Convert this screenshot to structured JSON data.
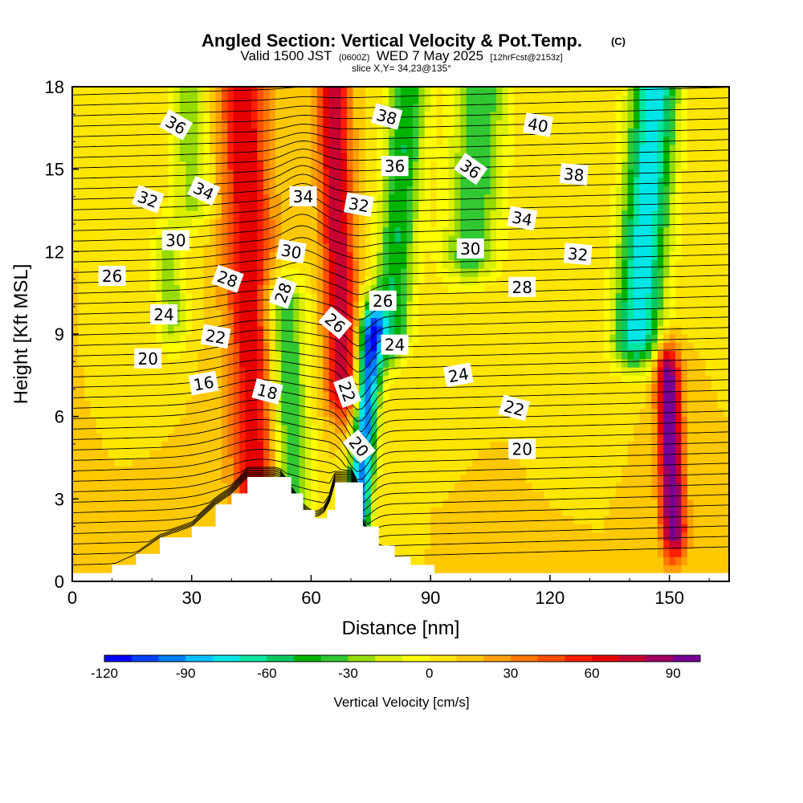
{
  "chart_data": {
    "type": "heatmap",
    "title": "Angled Section: Vertical Velocity & Pot.Temp.",
    "title_suffix": "(C)",
    "subtitle_valid": "Valid 1500 JST",
    "subtitle_z": "(0600Z)",
    "subtitle_date": "WED 7 May 2025",
    "subtitle_fcst": "[12hrFcst@2153z]",
    "subtitle_slice": "slice X,Y= 34,23@135°",
    "xlabel": "Distance [nm]",
    "ylabel": "Height [Kft MSL]",
    "xlim": [
      0,
      165
    ],
    "ylim": [
      0,
      18
    ],
    "x_ticks": [
      "0",
      "30",
      "60",
      "90",
      "120",
      "150"
    ],
    "y_ticks": [
      "0",
      "3",
      "6",
      "9",
      "12",
      "15",
      "18"
    ],
    "colorbar": {
      "label": "Vertical Velocity [cm/s]",
      "min": -120,
      "max": 100,
      "step": 10,
      "tick_labels": [
        "-120",
        "-90",
        "-60",
        "-30",
        "0",
        "30",
        "60",
        "90"
      ],
      "colors": [
        "#0000ff",
        "#0040ff",
        "#0080ff",
        "#00c0ff",
        "#00e6e6",
        "#00e6a0",
        "#00c864",
        "#00b400",
        "#32c832",
        "#96dc00",
        "#dcf000",
        "#ffff00",
        "#ffe600",
        "#ffc800",
        "#ffa000",
        "#ff7800",
        "#ff5000",
        "#ff1e00",
        "#e60000",
        "#c80032",
        "#a00064",
        "#780096"
      ]
    },
    "velocity_features": [
      {
        "x": 47,
        "z_bottom": 0.5,
        "z_top": 18,
        "w": 60,
        "width": 6
      },
      {
        "x": 68,
        "z_bottom": 7.0,
        "z_top": 18,
        "w": 70,
        "width": 4
      },
      {
        "x": 55,
        "z_bottom": 3.0,
        "z_top": 10,
        "w": -55,
        "width": 5
      },
      {
        "x": 72,
        "z_bottom": 2.5,
        "z_top": 9,
        "w": -110,
        "width": 3
      },
      {
        "x": 80,
        "z_bottom": 9.0,
        "z_top": 18,
        "w": -60,
        "width": 5
      },
      {
        "x": 100,
        "z_bottom": 12,
        "z_top": 18,
        "w": -50,
        "width": 7
      },
      {
        "x": 142,
        "z_bottom": 9.0,
        "z_top": 18,
        "w": -90,
        "width": 6
      },
      {
        "x": 151,
        "z_bottom": 2.0,
        "z_top": 7.5,
        "w": 95,
        "width": 3
      },
      {
        "x": 30,
        "z_bottom": 14,
        "z_top": 18,
        "w": -35,
        "width": 5
      },
      {
        "x": 25,
        "z_bottom": 9.5,
        "z_top": 12,
        "w": -35,
        "width": 4
      }
    ],
    "terrain": [
      {
        "x": 0,
        "z": 0.3
      },
      {
        "x": 10,
        "z": 0.6
      },
      {
        "x": 16,
        "z": 1.0
      },
      {
        "x": 22,
        "z": 1.6
      },
      {
        "x": 30,
        "z": 2.0
      },
      {
        "x": 36,
        "z": 2.8
      },
      {
        "x": 40,
        "z": 3.2
      },
      {
        "x": 44,
        "z": 3.8
      },
      {
        "x": 52,
        "z": 3.8
      },
      {
        "x": 55,
        "z": 3.2
      },
      {
        "x": 58,
        "z": 2.6
      },
      {
        "x": 61,
        "z": 2.3
      },
      {
        "x": 64,
        "z": 2.6
      },
      {
        "x": 66,
        "z": 3.6
      },
      {
        "x": 71,
        "z": 3.6
      },
      {
        "x": 73,
        "z": 2.0
      },
      {
        "x": 77,
        "z": 1.3
      },
      {
        "x": 81,
        "z": 0.9
      },
      {
        "x": 85,
        "z": 0.6
      },
      {
        "x": 91,
        "z": 0.3
      },
      {
        "x": 165,
        "z": 0.3
      }
    ],
    "contour_labels": [
      {
        "text": "36",
        "x": 26,
        "z": 16.6,
        "angle": 30
      },
      {
        "text": "34",
        "x": 33,
        "z": 14.2,
        "angle": 25
      },
      {
        "text": "32",
        "x": 19,
        "z": 13.9,
        "angle": 20
      },
      {
        "text": "30",
        "x": 26,
        "z": 12.4,
        "angle": 0
      },
      {
        "text": "26",
        "x": 10,
        "z": 11.1,
        "angle": 0
      },
      {
        "text": "28",
        "x": 39,
        "z": 11.0,
        "angle": 20
      },
      {
        "text": "24",
        "x": 23,
        "z": 9.7,
        "angle": 0
      },
      {
        "text": "22",
        "x": 36,
        "z": 8.9,
        "angle": 10
      },
      {
        "text": "20",
        "x": 19,
        "z": 8.1,
        "angle": 0
      },
      {
        "text": "16",
        "x": 33,
        "z": 7.2,
        "angle": -10
      },
      {
        "text": "18",
        "x": 49,
        "z": 6.9,
        "angle": 15
      },
      {
        "text": "34",
        "x": 58,
        "z": 14.0,
        "angle": 0
      },
      {
        "text": "30",
        "x": 55,
        "z": 12.0,
        "angle": 10
      },
      {
        "text": "28",
        "x": 53,
        "z": 10.5,
        "angle": -70
      },
      {
        "text": "26",
        "x": 66,
        "z": 9.4,
        "angle": 40
      },
      {
        "text": "38",
        "x": 79,
        "z": 16.9,
        "angle": 15
      },
      {
        "text": "36",
        "x": 81,
        "z": 15.1,
        "angle": 0
      },
      {
        "text": "32",
        "x": 72,
        "z": 13.7,
        "angle": 10
      },
      {
        "text": "26",
        "x": 78,
        "z": 10.2,
        "angle": 0
      },
      {
        "text": "24",
        "x": 81,
        "z": 8.6,
        "angle": 0
      },
      {
        "text": "22",
        "x": 69,
        "z": 6.9,
        "angle": 70
      },
      {
        "text": "20",
        "x": 72,
        "z": 4.9,
        "angle": 50
      },
      {
        "text": "36",
        "x": 100,
        "z": 15.0,
        "angle": 35
      },
      {
        "text": "40",
        "x": 117,
        "z": 16.6,
        "angle": 10
      },
      {
        "text": "38",
        "x": 126,
        "z": 14.8,
        "angle": 5
      },
      {
        "text": "34",
        "x": 113,
        "z": 13.2,
        "angle": 10
      },
      {
        "text": "30",
        "x": 100,
        "z": 12.1,
        "angle": 0
      },
      {
        "text": "32",
        "x": 127,
        "z": 11.9,
        "angle": 5
      },
      {
        "text": "28",
        "x": 113,
        "z": 10.7,
        "angle": 0
      },
      {
        "text": "24",
        "x": 97,
        "z": 7.5,
        "angle": -10
      },
      {
        "text": "22",
        "x": 111,
        "z": 6.3,
        "angle": 15
      },
      {
        "text": "20",
        "x": 113,
        "z": 4.8,
        "angle": 0
      }
    ]
  }
}
